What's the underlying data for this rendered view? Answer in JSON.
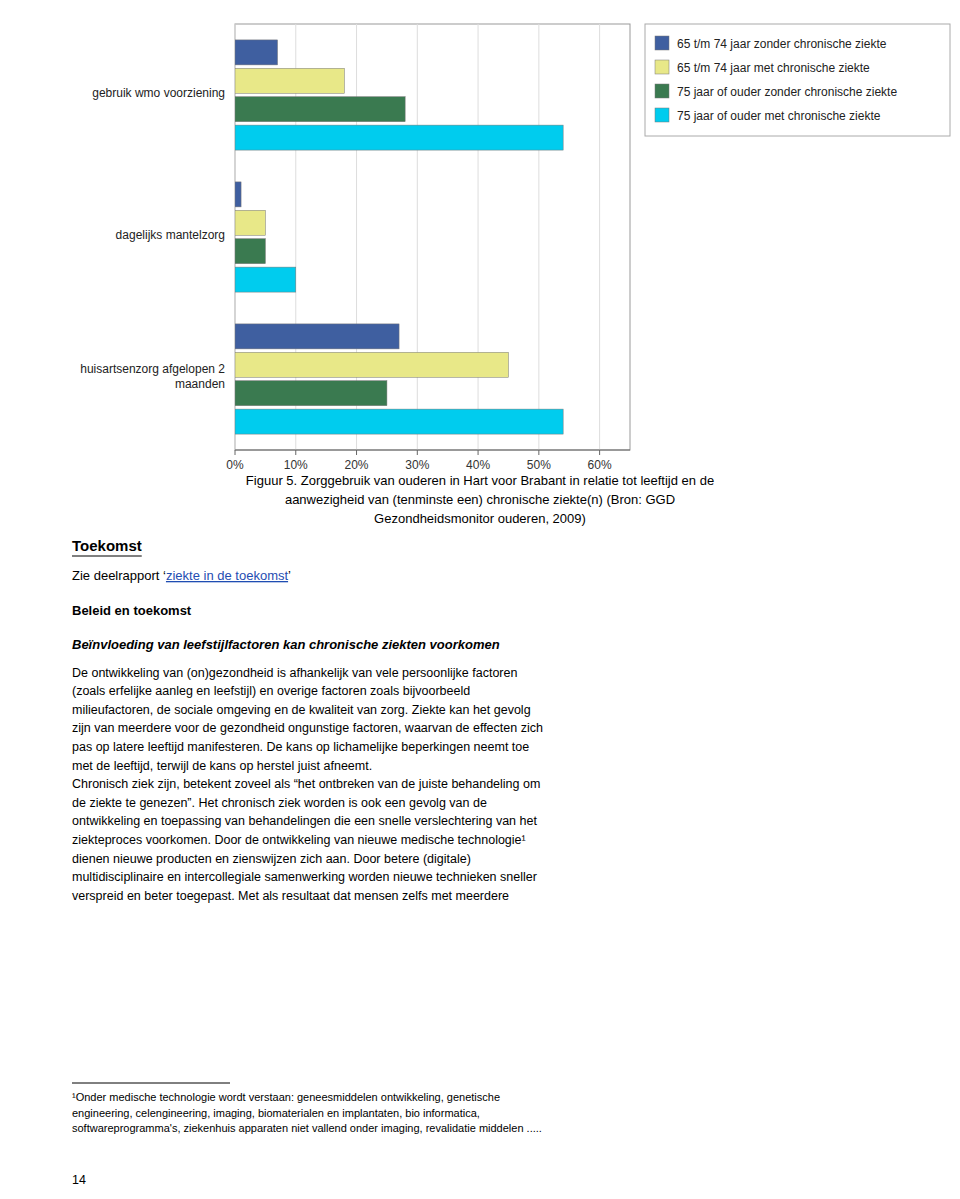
{
  "chart_data": {
    "type": "bar",
    "orientation": "horizontal",
    "title": "Figuur 5. Zorggebruik van ouderen in Hart voor Brabant in relatie tot leeftijd en de\naanwezigheid van (tenminste een) chronische ziekte(n) (Bron: GGD\nGezondheidsmonitor ouderen, 2009)",
    "categories": [
      "gebruik wmo voorziening",
      "dagelijks mantelzorg",
      "huisartsenzorg afgelopen 2\nmaanden"
    ],
    "series": [
      {
        "name": "65 t/m 74 jaar zonder chronische ziekte",
        "color": "#3F5FA0",
        "values": [
          0.07,
          0.01,
          0.27
        ]
      },
      {
        "name": "65 t/m 74 jaar met chronische ziekte",
        "color": "#E8E888",
        "values": [
          0.18,
          0.05,
          0.45
        ]
      },
      {
        "name": "75 jaar of ouder zonder chronische ziekte",
        "color": "#3A7A50",
        "values": [
          0.28,
          0.05,
          0.25
        ]
      },
      {
        "name": "75 jaar of ouder met chronische ziekte",
        "color": "#00CCEE",
        "values": [
          0.54,
          0.1,
          0.54
        ]
      }
    ],
    "xlim": [
      0.0,
      0.65
    ],
    "xticks": [
      {
        "value": 0.0,
        "label": "0%"
      },
      {
        "value": 0.1,
        "label": "10%"
      },
      {
        "value": 0.2,
        "label": "20%"
      },
      {
        "value": 0.3,
        "label": "30%"
      },
      {
        "value": 0.4,
        "label": "40%"
      },
      {
        "value": 0.5,
        "label": "50%"
      },
      {
        "value": 0.6,
        "label": "60%"
      }
    ],
    "grid": true,
    "legend": "upper right",
    "annotations": [
      "Toekomst",
      "Zie deelrapport ‘",
      "ziekte in de toekomst",
      "’",
      "Beleid en toekomst",
      "Beïnvloeding van leefstijlfactoren kan chronische ziekten voorkomen",
      "De ontwikkeling van (on)gezondheid is afhankelijk van vele persoonlijke factoren\n(zoals erfelijke aanleg en leefstijl) en overige factoren zoals bijvoorbeeld\nmilieufactoren, de sociale omgeving en de kwaliteit van zorg. Ziekte kan het gevolg\nzijn van meerdere voor de gezondheid ongunstige factoren, waarvan de effecten zich\npas op latere leeftijd manifesteren. De kans op lichamelijke beperkingen neemt toe\nmet de leeftijd, terwijl de kans op herstel juist afneemt.\nChronisch ziek zijn, betekent zoveel als “het ontbreken van de juiste behandeling om\nde ziekte te genezen”. Het chronisch ziek worden is ook een gevolg van de\nontwikkeling en toepassing van behandelingen die een snelle verslechtering van het\nziekteproces voorkomen. Door de ontwikkeling van nieuwe medische technologie¹\ndienen nieuwe producten en zienswijzen zich aan. Door betere (digitale)\nmultidisciplinaire en intercollegiale samenwerking worden nieuwe technieken sneller\nverspreid en beter toegepast. Met als resultaat dat mensen zelfs met meerdere",
      "¹Onder medische technologie wordt verstaan: geneesmiddelen ontwikkeling, genetische\nengineering, celengineering, imaging, biomaterialen en implantaten, bio informatica,\nsoftwareprogramma's, ziekenhuis apparaten niet vallend onder imaging, revalidatie middelen .....",
      "14"
    ]
  }
}
